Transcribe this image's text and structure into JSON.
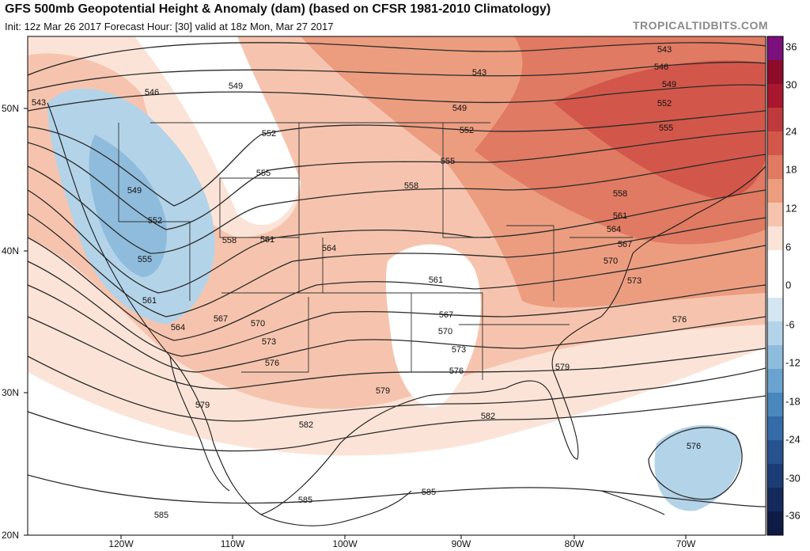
{
  "header": {
    "title": "GFS 500mb Geopotential Height & Anomaly (dam) (based on CFSR 1981-2010 Climatology)",
    "subtitle": "Init: 12z Mar 26 2017   Forecast Hour: [30]   valid at 18z Mon, Mar 27 2017",
    "brand": "TROPICALTIDBITS.COM"
  },
  "axes": {
    "lat_labels": [
      "50N",
      "40N",
      "30N",
      "20N"
    ],
    "lon_labels": [
      "120W",
      "110W",
      "100W",
      "90W",
      "80W",
      "70W"
    ]
  },
  "colorbar": {
    "labels": [
      "36",
      "30",
      "24",
      "18",
      "12",
      "6",
      "0",
      "-6",
      "-12",
      "-18",
      "-24",
      "-30",
      "-36"
    ],
    "colors": [
      "#7b0f7b",
      "#8e0b2a",
      "#a8172e",
      "#bf3a3a",
      "#d2574a",
      "#e07a62",
      "#ec9d80",
      "#f6c4ae",
      "#fbe4d7",
      "#ffffff",
      "#ffffff",
      "#d4e6f1",
      "#b3d3e8",
      "#8fbcdc",
      "#6aa3cf",
      "#4a87bd",
      "#356ca8",
      "#27528f",
      "#1c3c75",
      "#152a5c",
      "#0e1c45"
    ]
  },
  "contours": {
    "labels": [
      "543",
      "543",
      "543",
      "546",
      "546",
      "549",
      "549",
      "549",
      "549",
      "552",
      "552",
      "552",
      "552",
      "555",
      "555",
      "555",
      "555",
      "558",
      "558",
      "558",
      "561",
      "561",
      "561",
      "561",
      "564",
      "564",
      "564",
      "567",
      "567",
      "567",
      "570",
      "570",
      "570",
      "573",
      "573",
      "573",
      "576",
      "576",
      "576",
      "576",
      "579",
      "579",
      "579",
      "582",
      "582",
      "585",
      "585",
      "585"
    ]
  }
}
